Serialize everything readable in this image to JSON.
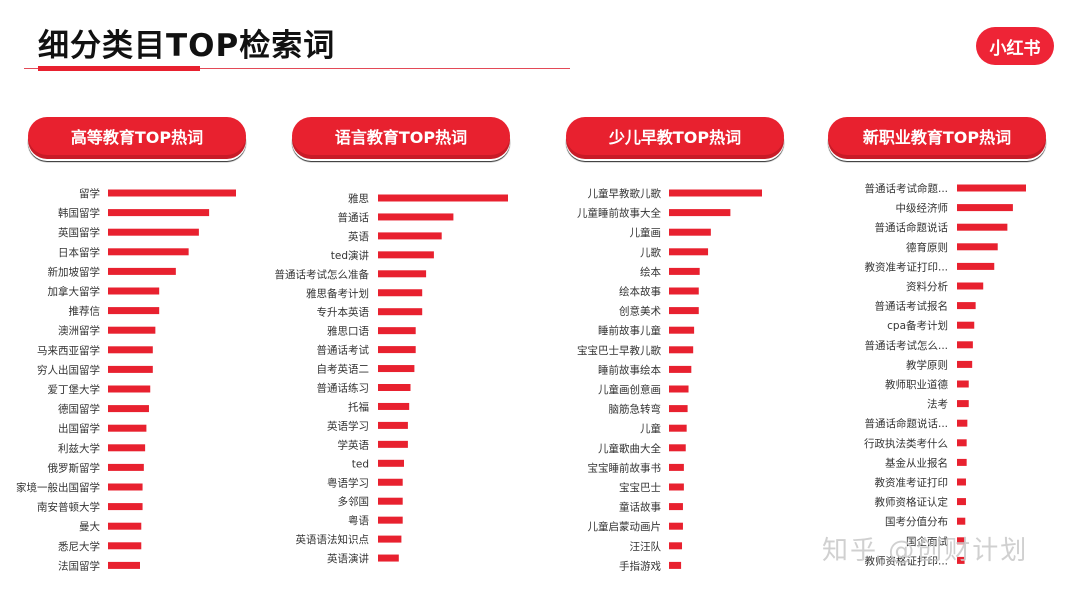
{
  "header": {
    "title": "细分类目TOP检索词",
    "logo_text": "小红书"
  },
  "watermark": "知乎 @创财计划",
  "colors": {
    "accent": "#e8212f"
  },
  "chart_data": [
    {
      "type": "bar",
      "title": "高等教育TOP热词",
      "categories": [
        "留学",
        "韩国留学",
        "英国留学",
        "日本留学",
        "新加坡留学",
        "加拿大留学",
        "推荐信",
        "澳洲留学",
        "马来西亚留学",
        "穷人出国留学",
        "爱丁堡大学",
        "德国留学",
        "出国留学",
        "利兹大学",
        "俄罗斯留学",
        "家境一般出国留学",
        "南安普顿大学",
        "曼大",
        "悉尼大学",
        "法国留学"
      ],
      "values": [
        100,
        79,
        71,
        63,
        53,
        40,
        40,
        37,
        35,
        35,
        33,
        32,
        30,
        29,
        28,
        27,
        27,
        26,
        26,
        25
      ]
    },
    {
      "type": "bar",
      "title": "语言教育TOP热词",
      "categories": [
        "雅思",
        "普通话",
        "英语",
        "ted演讲",
        "普通话考试怎么准备",
        "雅思备考计划",
        "专升本英语",
        "雅思口语",
        "普通话考试",
        "自考英语二",
        "普通话练习",
        "托福",
        "英语学习",
        "学英语",
        "ted",
        "粤语学习",
        "多邻国",
        "粤语",
        "英语语法知识点",
        "英语演讲"
      ],
      "values": [
        100,
        58,
        49,
        43,
        37,
        34,
        34,
        29,
        29,
        28,
        25,
        24,
        23,
        23,
        20,
        19,
        19,
        19,
        18,
        16
      ]
    },
    {
      "type": "bar",
      "title": "少儿早教TOP热词",
      "categories": [
        "儿童早教歌儿歌",
        "儿童睡前故事大全",
        "儿童画",
        "儿歌",
        "绘本",
        "绘本故事",
        "创意美术",
        "睡前故事儿童",
        "宝宝巴士早教儿歌",
        "睡前故事绘本",
        "儿童画创意画",
        "脑筋急转弯",
        "儿童",
        "儿童歌曲大全",
        "宝宝睡前故事书",
        "宝宝巴士",
        "童话故事",
        "儿童启蒙动画片",
        "汪汪队",
        "手指游戏"
      ],
      "values": [
        100,
        66,
        45,
        42,
        33,
        32,
        32,
        27,
        26,
        24,
        21,
        20,
        19,
        18,
        16,
        16,
        15,
        15,
        14,
        13
      ]
    },
    {
      "type": "bar",
      "title": "新职业教育TOP热词",
      "categories": [
        "普通话考试命题...",
        "中级经济师",
        "普通话命题说话",
        "德育原则",
        "教资准考证打印...",
        "资料分析",
        "普通话考试报名",
        "cpa备考计划",
        "普通话考试怎么...",
        "教学原则",
        "教师职业道德",
        "法考",
        "普通话命题说话...",
        "行政执法类考什么",
        "基金从业报名",
        "教资准考证打印",
        "教师资格证认定",
        "国考分值分布",
        "国企面试",
        "教师资格证打印..."
      ],
      "values": [
        100,
        81,
        73,
        59,
        54,
        38,
        27,
        25,
        23,
        22,
        17,
        17,
        15,
        14,
        14,
        13,
        13,
        12,
        11,
        11
      ]
    }
  ]
}
